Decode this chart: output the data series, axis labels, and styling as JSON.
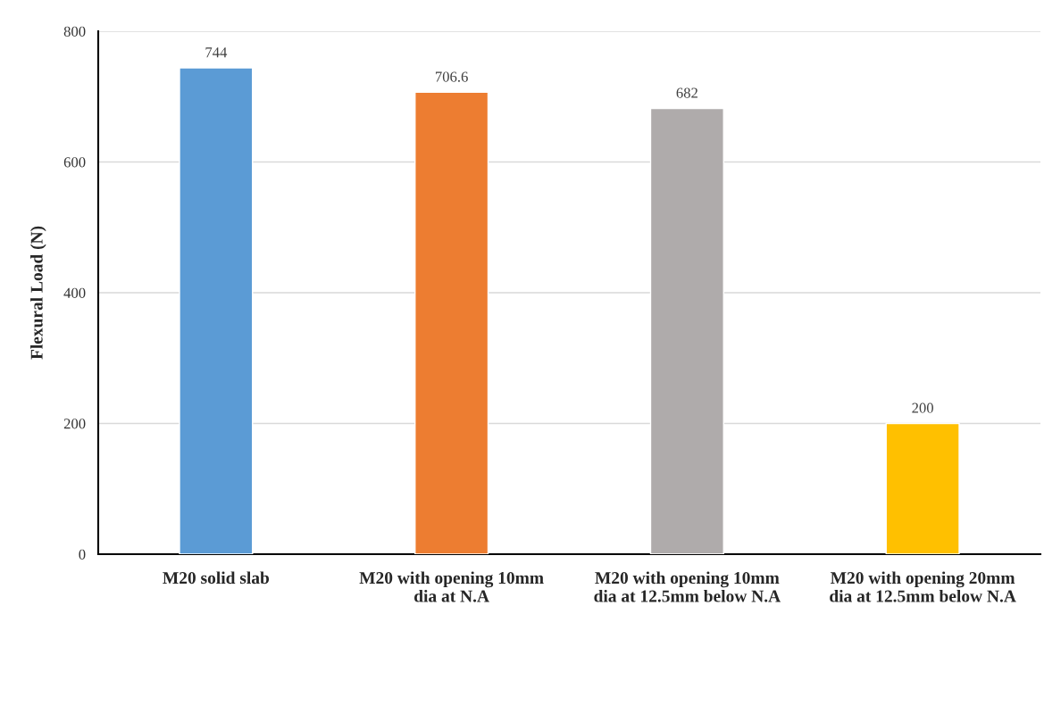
{
  "chart_data": {
    "type": "bar",
    "ylabel": "Flexural Load (N)",
    "categories": [
      "M20 solid slab",
      "M20 with opening 10mm\ndia at N.A",
      "M20 with opening 10mm\ndia at 12.5mm below N.A",
      "M20 with opening 20mm\ndia at 12.5mm below N.A"
    ],
    "values": [
      744,
      706.6,
      682,
      200
    ],
    "colors": [
      "#5b9bd5",
      "#ed7d31",
      "#afabab",
      "#ffc000"
    ],
    "ylim": [
      0,
      800
    ],
    "yticks": [
      0,
      200,
      400,
      600,
      800
    ],
    "grid": "y",
    "data_labels": true
  }
}
